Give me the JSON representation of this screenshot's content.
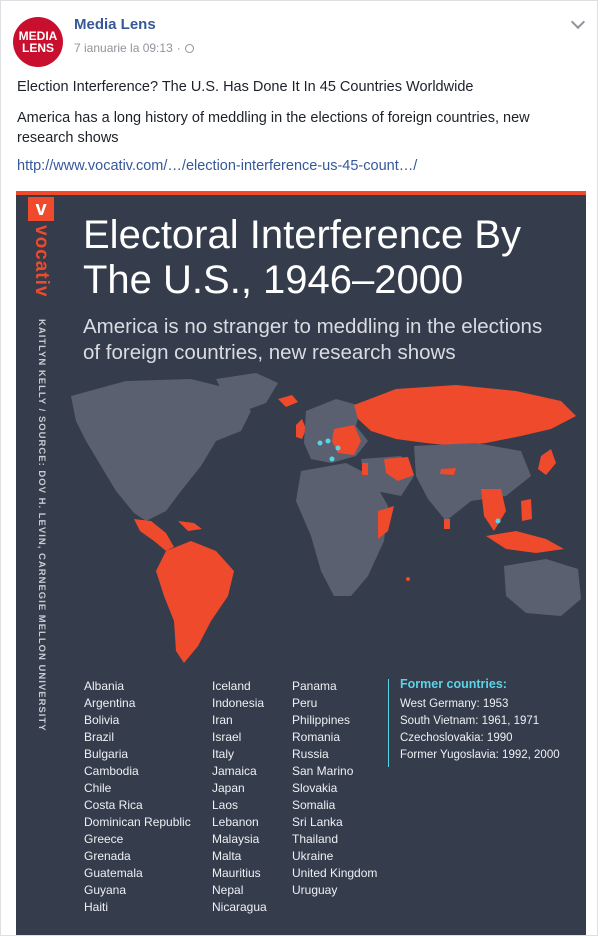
{
  "post": {
    "avatar_line1": "MEDIA",
    "avatar_line2": "LENS",
    "author": "Media Lens",
    "timestamp": "7 ianuarie la 09:13",
    "separator": "·",
    "headline": "Election Interference? The U.S. Has Done It In 45 Countries Worldwide",
    "description": "America has a long history of meddling in the elections of foreign countries, new research shows",
    "link": "http://www.vocativ.com/…/election-interference-us-45-count…/"
  },
  "infographic": {
    "logo_letter": "v",
    "brand": "vocativ",
    "credit": "KAITLYN KELLY / SOURCE: DOV H. LEVIN, CARNEGIE MELLON UNIVERSITY",
    "title_line1": "Electoral Interference By",
    "title_line2": "The U.S., 1946–2000",
    "subtitle_line1": "America is no stranger to meddling in the elections",
    "subtitle_line2": "of foreign countries, new research shows",
    "column1": [
      "Albania",
      "Argentina",
      "Bolivia",
      "Brazil",
      "Bulgaria",
      "Cambodia",
      "Chile",
      "Costa Rica",
      "Dominican Republic",
      "Greece",
      "Grenada",
      "Guatemala",
      "Guyana",
      "Haiti"
    ],
    "column2": [
      "Iceland",
      "Indonesia",
      "Iran",
      "Israel",
      "Italy",
      "Jamaica",
      "Japan",
      "Laos",
      "Lebanon",
      "Malaysia",
      "Malta",
      "Mauritius",
      "Nepal",
      "Nicaragua"
    ],
    "column3": [
      "Panama",
      "Peru",
      "Philippines",
      "Romania",
      "Russia",
      "San Marino",
      "Slovakia",
      "Somalia",
      "Sri Lanka",
      "Thailand",
      "Ukraine",
      "United Kingdom",
      "Uruguay"
    ],
    "former_heading": "Former countries:",
    "former_items": [
      "West Germany: 1953",
      "South Vietnam: 1961, 1971",
      "Czechoslovakia: 1990",
      "Former Yugoslavia: 1992, 2000"
    ]
  },
  "colors": {
    "background": "#353c4b",
    "land": "#5a6070",
    "highlight": "#ef4a2c",
    "accent": "#5bd3e6",
    "link": "#365899"
  }
}
